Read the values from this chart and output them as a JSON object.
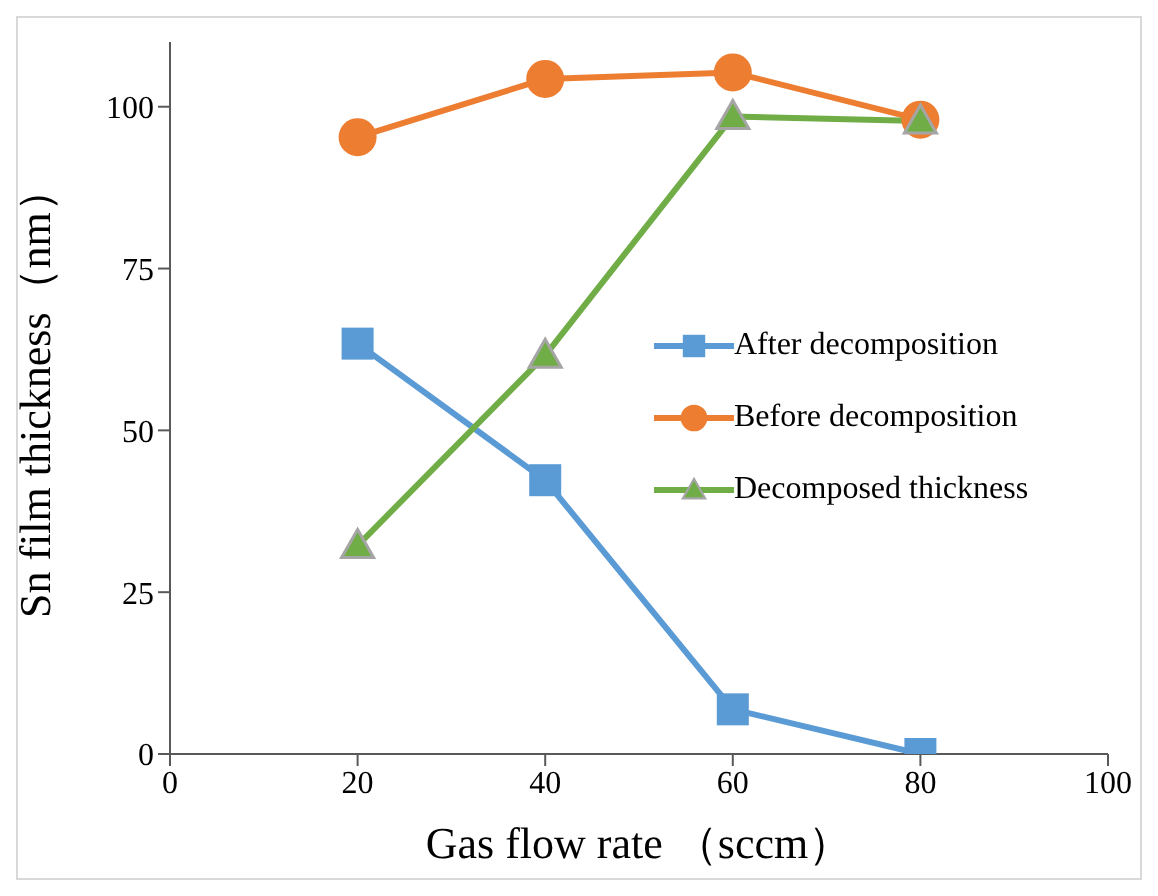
{
  "chart_data": {
    "type": "line",
    "xlabel": "Gas flow rate （sccm）",
    "ylabel": "Sn film thickness（nm）",
    "x": [
      20,
      40,
      60,
      80
    ],
    "xlim": [
      0,
      100
    ],
    "xticks": [
      0,
      20,
      40,
      60,
      80,
      100
    ],
    "ylim": [
      0,
      110
    ],
    "yticks": [
      0,
      25,
      50,
      75,
      100
    ],
    "grid": false,
    "legend": "right",
    "series": [
      {
        "name": "After decomposition",
        "color": "#5b9bd5",
        "marker": "square",
        "values": [
          63.4,
          42.3,
          6.9,
          0
        ]
      },
      {
        "name": "Before decomposition",
        "color": "#ed7d31",
        "marker": "circle",
        "values": [
          95.3,
          104.3,
          105.3,
          98
        ]
      },
      {
        "name": "Decomposed thickness",
        "color": "#70ad47",
        "marker": "triangle",
        "values": [
          32.2,
          61.6,
          98.5,
          97.8
        ]
      }
    ]
  }
}
